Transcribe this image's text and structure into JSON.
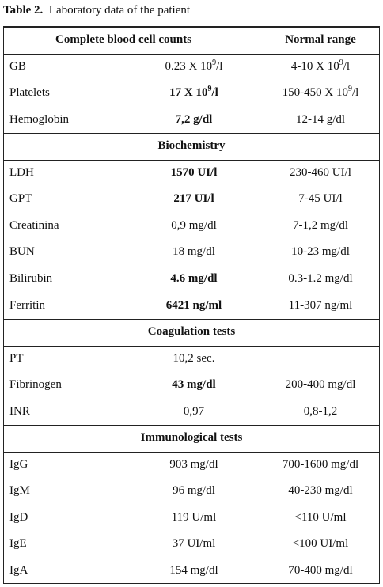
{
  "title": {
    "label": "Table 2.",
    "text": "Laboratory data of the patient"
  },
  "table": {
    "header": [
      "Complete blood cell counts",
      "Normal range"
    ],
    "sections": [
      {
        "rows": [
          {
            "cells": [
              "GB",
              {
                "before": "0.23 X 10",
                "sup": "9",
                "after": "/l"
              },
              {
                "before": "4-10 X 10",
                "sup": "9",
                "after": "/l"
              }
            ],
            "bold": false
          },
          {
            "cells": [
              "Platelets",
              {
                "before": "17  X 10",
                "sup": "9",
                "after": "/l"
              },
              {
                "before": "150-450 X 10",
                "sup": "9",
                "after": "/l"
              }
            ],
            "bold": true
          },
          {
            "cells": [
              "Hemoglobin",
              "7,2 g/dl",
              "12-14 g/dl"
            ],
            "bold": true
          }
        ]
      },
      {
        "title": "Biochemistry",
        "rows": [
          {
            "cells": [
              "LDH",
              "1570 UI/l",
              "230-460 UI/l"
            ],
            "bold": true
          },
          {
            "cells": [
              "GPT",
              "217 UI/l",
              "7-45 UI/l"
            ],
            "bold": true
          },
          {
            "cells": [
              "Creatinina",
              "0,9 mg/dl",
              "7-1,2 mg/dl"
            ],
            "bold": false
          },
          {
            "cells": [
              "BUN",
              "18 mg/dl",
              "10-23 mg/dl"
            ],
            "bold": false
          },
          {
            "cells": [
              "Bilirubin",
              "4.6 mg/dl",
              "0.3-1.2 mg/dl"
            ],
            "bold": true
          },
          {
            "cells": [
              "Ferritin",
              "6421 ng/ml",
              "11-307 ng/ml"
            ],
            "bold": true
          }
        ]
      },
      {
        "title": "Coagulation tests",
        "rows": [
          {
            "cells": [
              "PT",
              "10,2 sec."
            ],
            "bold": false
          },
          {
            "cells": [
              "Fibrinogen",
              "43 mg/dl",
              "200-400 mg/dl"
            ],
            "bold": true
          },
          {
            "cells": [
              "INR",
              "0,97",
              "0,8-1,2"
            ],
            "bold": false
          }
        ]
      },
      {
        "title": "Immunological tests",
        "rows": [
          {
            "cells": [
              "IgG",
              "903 mg/dl",
              "700-1600 mg/dl"
            ],
            "bold": false
          },
          {
            "cells": [
              "IgM",
              "96 mg/dl",
              "40-230 mg/dl"
            ],
            "bold": false
          },
          {
            "cells": [
              "IgD",
              "119 U/ml",
              "<110 U/ml"
            ],
            "bold": false
          },
          {
            "cells": [
              "IgE",
              "37 UI/ml",
              "<100 UI/ml"
            ],
            "bold": false
          },
          {
            "cells": [
              "IgA",
              "154 mg/dl",
              "70-400 mg/dl"
            ],
            "bold": false
          }
        ]
      }
    ]
  }
}
